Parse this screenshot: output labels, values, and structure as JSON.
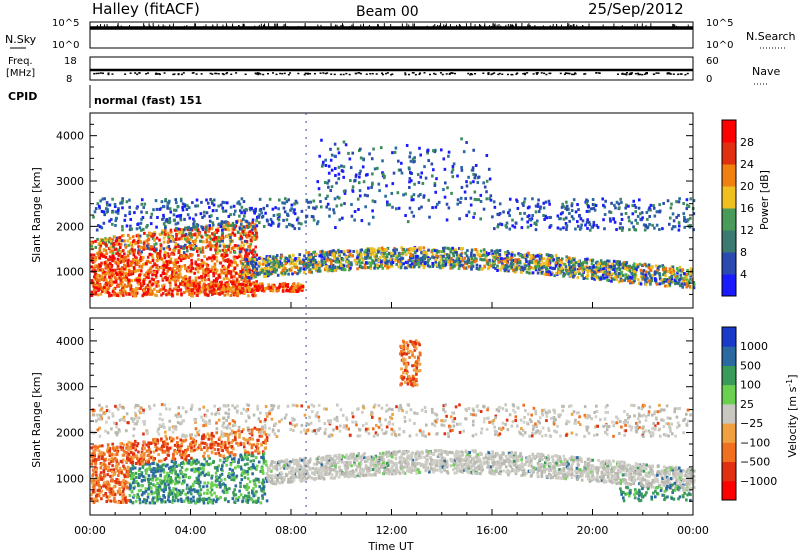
{
  "header": {
    "station": "Halley (fitACF)",
    "beam": "Beam 00",
    "date": "25/Sep/2012"
  },
  "nsky_panel": {
    "left_label": "N.Sky",
    "right_label": "N.Search",
    "y_ticks_left": [
      "10^5",
      "10^0"
    ],
    "y_ticks_right": [
      "10^5",
      "10^0"
    ],
    "legend_marker": "solid-line",
    "right_marker": "dotted-line"
  },
  "freq_panel": {
    "left_label_1": "Freq.",
    "left_label_2": "[MHz]",
    "right_label": "Nave",
    "y_ticks_left": [
      "18",
      "8"
    ],
    "y_ticks_right": [
      "60",
      "0"
    ]
  },
  "cpid_panel": {
    "label": "CPID",
    "value": "normal (fast) 151"
  },
  "chart_data": [
    {
      "type": "heatmap",
      "name": "power",
      "ylabel": "Slant Range [km]",
      "ylim": [
        200,
        4500
      ],
      "yticks": [
        "1000",
        "2000",
        "3000",
        "4000"
      ],
      "colorbar_label": "Power [dB]",
      "colorbar_ticks": [
        "4",
        "8",
        "12",
        "16",
        "20",
        "24",
        "28"
      ],
      "colorbar_colors": [
        "#1a1aff",
        "#2040b0",
        "#3a8a5a",
        "#4ab04a",
        "#f0c020",
        "#f07010",
        "#e02010",
        "#ff0000"
      ],
      "description_bands": [
        {
          "t_start": 0,
          "t_end": 7,
          "range": [
            400,
            1700
          ],
          "level": "high"
        },
        {
          "t_start": 7,
          "t_end": 24,
          "range": [
            900,
            1500
          ],
          "level": "mid"
        },
        {
          "t_start": 0,
          "t_end": 24,
          "range": [
            1900,
            2600
          ],
          "level": "low"
        }
      ]
    },
    {
      "type": "heatmap",
      "name": "velocity",
      "xlabel": "Time UT",
      "ylabel": "Slant Range [km]",
      "ylim": [
        200,
        4500
      ],
      "yticks": [
        "1000",
        "2000",
        "3000",
        "4000"
      ],
      "xticks": [
        "00:00",
        "04:00",
        "08:00",
        "12:00",
        "16:00",
        "20:00",
        "00:00"
      ],
      "colorbar_label": "Velocity [m s^-1]",
      "colorbar_label_text": "Velocity",
      "colorbar_label_unit": "[m s",
      "colorbar_label_exp": "-1",
      "colorbar_label_close": "]",
      "colorbar_ticks": [
        "1000",
        "500",
        "100",
        "25",
        "−25",
        "−100",
        "−500",
        "−1000"
      ],
      "colorbar_colors": [
        "#1a3acc",
        "#2a6aa0",
        "#3a9a5a",
        "#6ad050",
        "#c8c8c0",
        "#f0a040",
        "#f07020",
        "#e03010",
        "#ff0000"
      ]
    }
  ]
}
